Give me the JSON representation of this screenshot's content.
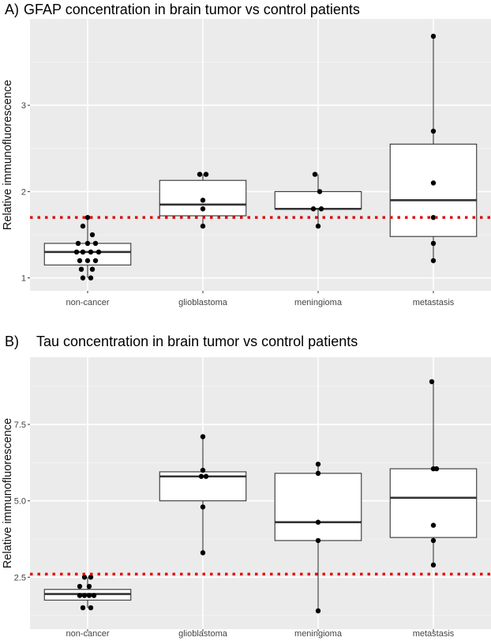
{
  "chart_data": [
    {
      "type": "box",
      "panel_label": "A)",
      "title": "GFAP concentration in brain tumor vs control patients",
      "xlabel": "",
      "ylabel": "Relative immunofluorescence",
      "categories": [
        "non-cancer",
        "glioblastoma",
        "meningioma",
        "metastasis"
      ],
      "ylim": [
        0.85,
        4.0
      ],
      "yticks": [
        1,
        2,
        3
      ],
      "ytick_labels": [
        "1",
        "2",
        "3"
      ],
      "reference_line": {
        "y": 1.7,
        "color": "#dd1111",
        "style": "dotted"
      },
      "boxes": [
        {
          "category": "non-cancer",
          "whisker_low": 1.0,
          "q1": 1.15,
          "median": 1.3,
          "q3": 1.4,
          "whisker_high": 1.7
        },
        {
          "category": "glioblastoma",
          "whisker_low": 1.6,
          "q1": 1.72,
          "median": 1.85,
          "q3": 2.13,
          "whisker_high": 2.2
        },
        {
          "category": "meningioma",
          "whisker_low": 1.6,
          "q1": 1.8,
          "median": 1.8,
          "q3": 2.0,
          "whisker_high": 2.2
        },
        {
          "category": "metastasis",
          "whisker_low": 1.2,
          "q1": 1.48,
          "median": 1.9,
          "q3": 2.55,
          "whisker_high": 3.8
        }
      ],
      "points": [
        {
          "category": "non-cancer",
          "values": [
            1.7,
            1.6,
            1.5,
            1.4,
            1.4,
            1.4,
            1.3,
            1.3,
            1.3,
            1.3,
            1.2,
            1.2,
            1.2,
            1.1,
            1.1,
            1.0,
            1.0
          ]
        },
        {
          "category": "glioblastoma",
          "values": [
            2.2,
            2.2,
            1.9,
            1.8,
            1.6
          ]
        },
        {
          "category": "meningioma",
          "values": [
            2.2,
            2.0,
            1.8,
            1.8,
            1.6
          ]
        },
        {
          "category": "metastasis",
          "values": [
            3.8,
            2.7,
            2.1,
            1.7,
            1.4,
            1.2
          ]
        }
      ]
    },
    {
      "type": "box",
      "panel_label": "B)",
      "title": "Tau concentration in brain tumor vs control patients",
      "xlabel": "",
      "ylabel": "Relative immunofluorescence",
      "categories": [
        "non-cancer",
        "glioblastoma",
        "meningioma",
        "metastasis"
      ],
      "ylim": [
        0.8,
        9.7
      ],
      "yticks": [
        2.5,
        5.0,
        7.5
      ],
      "ytick_labels": [
        "2.5",
        "5.0",
        "7.5"
      ],
      "reference_line": {
        "y": 2.6,
        "color": "#dd1111",
        "style": "dotted"
      },
      "boxes": [
        {
          "category": "non-cancer",
          "whisker_low": 1.5,
          "q1": 1.75,
          "median": 1.95,
          "q3": 2.1,
          "whisker_high": 2.5
        },
        {
          "category": "glioblastoma",
          "whisker_low": 3.3,
          "q1": 5.0,
          "median": 5.8,
          "q3": 5.95,
          "whisker_high": 7.1
        },
        {
          "category": "meningioma",
          "whisker_low": 1.4,
          "q1": 3.7,
          "median": 4.3,
          "q3": 5.9,
          "whisker_high": 6.2
        },
        {
          "category": "metastasis",
          "whisker_low": 2.9,
          "q1": 3.8,
          "median": 5.1,
          "q3": 6.05,
          "whisker_high": 8.9
        }
      ],
      "points": [
        {
          "category": "non-cancer",
          "values": [
            2.5,
            2.5,
            2.2,
            2.2,
            1.9,
            1.9,
            1.9,
            1.9,
            1.5,
            1.5
          ]
        },
        {
          "category": "glioblastoma",
          "values": [
            7.1,
            6.0,
            5.8,
            5.8,
            4.8,
            3.3
          ]
        },
        {
          "category": "meningioma",
          "values": [
            6.2,
            5.9,
            4.3,
            3.7,
            1.4
          ]
        },
        {
          "category": "metastasis",
          "values": [
            8.9,
            6.05,
            6.05,
            4.2,
            3.7,
            2.9
          ]
        }
      ]
    }
  ]
}
